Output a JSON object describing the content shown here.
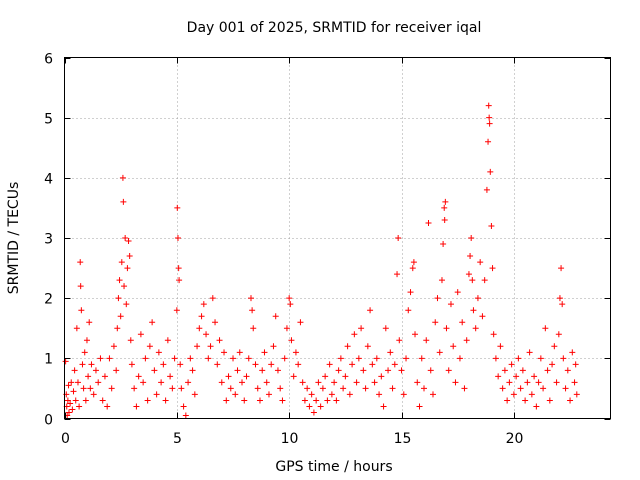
{
  "chart_data": {
    "type": "scatter",
    "title": "Day 001 of 2025, SRMTID for receiver iqal",
    "xlabel": "GPS time / hours",
    "ylabel": "SRMTID / TECUs",
    "xlim": [
      0,
      24.3
    ],
    "ylim": [
      0,
      6
    ],
    "xticks": [
      0,
      5,
      10,
      15,
      20
    ],
    "yticks": [
      0,
      1,
      2,
      3,
      4,
      5,
      6
    ],
    "grid": true,
    "marker": "plus",
    "colors": {
      "marker": "#ff0000",
      "grid": "#a0a0a0",
      "axis": "#000000"
    },
    "series": [
      {
        "name": "SRMTID",
        "points": [
          [
            0.05,
            0.95
          ],
          [
            0.08,
            0.4
          ],
          [
            0.1,
            0.2
          ],
          [
            0.12,
            0.05
          ],
          [
            0.15,
            0.3
          ],
          [
            0.18,
            0.55
          ],
          [
            0.2,
            0.1
          ],
          [
            0.25,
            0.25
          ],
          [
            0.3,
            0.6
          ],
          [
            0.35,
            0.15
          ],
          [
            0.4,
            0.45
          ],
          [
            0.45,
            0.8
          ],
          [
            0.5,
            0.3
          ],
          [
            0.55,
            1.5
          ],
          [
            0.6,
            0.6
          ],
          [
            0.65,
            0.2
          ],
          [
            0.7,
            2.6
          ],
          [
            0.72,
            2.2
          ],
          [
            0.75,
            1.8
          ],
          [
            0.8,
            0.9
          ],
          [
            0.85,
            0.5
          ],
          [
            0.9,
            1.1
          ],
          [
            0.95,
            0.3
          ],
          [
            1.0,
            1.3
          ],
          [
            1.05,
            0.7
          ],
          [
            1.1,
            1.6
          ],
          [
            1.15,
            0.5
          ],
          [
            1.2,
            0.9
          ],
          [
            1.3,
            0.4
          ],
          [
            1.4,
            0.8
          ],
          [
            1.5,
            0.6
          ],
          [
            1.6,
            1.0
          ],
          [
            1.7,
            0.3
          ],
          [
            1.8,
            0.7
          ],
          [
            1.9,
            0.2
          ],
          [
            2.0,
            1.0
          ],
          [
            2.1,
            0.5
          ],
          [
            2.2,
            1.2
          ],
          [
            2.3,
            0.8
          ],
          [
            2.35,
            1.5
          ],
          [
            2.4,
            2.0
          ],
          [
            2.45,
            2.3
          ],
          [
            2.5,
            1.7
          ],
          [
            2.55,
            2.6
          ],
          [
            2.6,
            4.0
          ],
          [
            2.62,
            3.6
          ],
          [
            2.65,
            2.2
          ],
          [
            2.7,
            3.0
          ],
          [
            2.75,
            1.9
          ],
          [
            2.8,
            2.5
          ],
          [
            2.85,
            2.95
          ],
          [
            2.9,
            2.7
          ],
          [
            2.95,
            1.3
          ],
          [
            3.0,
            0.9
          ],
          [
            3.1,
            0.5
          ],
          [
            3.2,
            0.2
          ],
          [
            3.3,
            0.7
          ],
          [
            3.4,
            1.4
          ],
          [
            3.5,
            0.6
          ],
          [
            3.6,
            1.0
          ],
          [
            3.7,
            0.3
          ],
          [
            3.8,
            1.2
          ],
          [
            3.9,
            1.6
          ],
          [
            4.0,
            0.8
          ],
          [
            4.1,
            0.4
          ],
          [
            4.2,
            1.1
          ],
          [
            4.3,
            0.6
          ],
          [
            4.4,
            0.9
          ],
          [
            4.5,
            0.3
          ],
          [
            4.6,
            1.3
          ],
          [
            4.7,
            0.7
          ],
          [
            4.8,
            0.5
          ],
          [
            4.9,
            1.0
          ],
          [
            5.0,
            1.8
          ],
          [
            5.02,
            3.5
          ],
          [
            5.05,
            3.0
          ],
          [
            5.08,
            2.5
          ],
          [
            5.1,
            2.3
          ],
          [
            5.15,
            0.9
          ],
          [
            5.2,
            0.5
          ],
          [
            5.3,
            0.2
          ],
          [
            5.4,
            0.05
          ],
          [
            5.5,
            0.6
          ],
          [
            5.6,
            1.0
          ],
          [
            5.7,
            0.8
          ],
          [
            5.8,
            0.4
          ],
          [
            5.9,
            1.2
          ],
          [
            6.0,
            1.5
          ],
          [
            6.1,
            1.7
          ],
          [
            6.2,
            1.9
          ],
          [
            6.3,
            1.4
          ],
          [
            6.4,
            1.0
          ],
          [
            6.5,
            1.2
          ],
          [
            6.6,
            2.0
          ],
          [
            6.7,
            1.6
          ],
          [
            6.8,
            0.9
          ],
          [
            6.9,
            1.3
          ],
          [
            7.0,
            0.6
          ],
          [
            7.1,
            1.1
          ],
          [
            7.2,
            0.3
          ],
          [
            7.3,
            0.7
          ],
          [
            7.4,
            0.5
          ],
          [
            7.5,
            1.0
          ],
          [
            7.6,
            0.4
          ],
          [
            7.7,
            0.8
          ],
          [
            7.8,
            1.1
          ],
          [
            7.9,
            0.6
          ],
          [
            8.0,
            0.3
          ],
          [
            8.1,
            0.7
          ],
          [
            8.2,
            1.0
          ],
          [
            8.3,
            2.0
          ],
          [
            8.35,
            1.8
          ],
          [
            8.4,
            1.5
          ],
          [
            8.5,
            0.9
          ],
          [
            8.6,
            0.5
          ],
          [
            8.7,
            0.3
          ],
          [
            8.8,
            0.8
          ],
          [
            8.9,
            1.1
          ],
          [
            9.0,
            0.6
          ],
          [
            9.1,
            0.4
          ],
          [
            9.2,
            0.9
          ],
          [
            9.3,
            1.2
          ],
          [
            9.4,
            1.7
          ],
          [
            9.5,
            0.8
          ],
          [
            9.6,
            0.5
          ],
          [
            9.7,
            0.3
          ],
          [
            9.8,
            1.0
          ],
          [
            9.9,
            1.5
          ],
          [
            10.0,
            2.0
          ],
          [
            10.05,
            1.9
          ],
          [
            10.1,
            1.3
          ],
          [
            10.2,
            0.7
          ],
          [
            10.3,
            1.1
          ],
          [
            10.4,
            0.9
          ],
          [
            10.5,
            1.6
          ],
          [
            10.6,
            0.6
          ],
          [
            10.7,
            0.3
          ],
          [
            10.8,
            0.5
          ],
          [
            10.9,
            0.2
          ],
          [
            11.0,
            0.4
          ],
          [
            11.1,
            0.1
          ],
          [
            11.2,
            0.3
          ],
          [
            11.3,
            0.6
          ],
          [
            11.4,
            0.2
          ],
          [
            11.5,
            0.5
          ],
          [
            11.6,
            0.7
          ],
          [
            11.7,
            0.3
          ],
          [
            11.8,
            0.9
          ],
          [
            11.9,
            0.4
          ],
          [
            12.0,
            0.6
          ],
          [
            12.1,
            0.3
          ],
          [
            12.2,
            0.8
          ],
          [
            12.3,
            1.0
          ],
          [
            12.4,
            0.5
          ],
          [
            12.5,
            0.7
          ],
          [
            12.6,
            1.2
          ],
          [
            12.7,
            0.4
          ],
          [
            12.8,
            0.9
          ],
          [
            12.9,
            1.4
          ],
          [
            13.0,
            0.6
          ],
          [
            13.1,
            1.0
          ],
          [
            13.2,
            1.5
          ],
          [
            13.3,
            0.8
          ],
          [
            13.4,
            0.5
          ],
          [
            13.5,
            1.2
          ],
          [
            13.6,
            1.8
          ],
          [
            13.7,
            0.9
          ],
          [
            13.8,
            0.6
          ],
          [
            13.9,
            1.0
          ],
          [
            14.0,
            0.4
          ],
          [
            14.1,
            0.7
          ],
          [
            14.2,
            0.2
          ],
          [
            14.3,
            1.5
          ],
          [
            14.4,
            0.8
          ],
          [
            14.5,
            1.1
          ],
          [
            14.6,
            0.5
          ],
          [
            14.7,
            0.9
          ],
          [
            14.8,
            2.4
          ],
          [
            14.85,
            3.0
          ],
          [
            14.9,
            1.3
          ],
          [
            15.0,
            0.8
          ],
          [
            15.1,
            0.4
          ],
          [
            15.2,
            1.0
          ],
          [
            15.3,
            1.8
          ],
          [
            15.4,
            2.1
          ],
          [
            15.5,
            2.5
          ],
          [
            15.55,
            2.6
          ],
          [
            15.6,
            1.4
          ],
          [
            15.7,
            0.6
          ],
          [
            15.8,
            0.2
          ],
          [
            15.9,
            1.0
          ],
          [
            16.0,
            0.5
          ],
          [
            16.1,
            1.3
          ],
          [
            16.2,
            3.25
          ],
          [
            16.3,
            0.8
          ],
          [
            16.4,
            0.4
          ],
          [
            16.5,
            1.6
          ],
          [
            16.6,
            2.0
          ],
          [
            16.7,
            1.1
          ],
          [
            16.8,
            2.3
          ],
          [
            16.85,
            2.9
          ],
          [
            16.9,
            3.5
          ],
          [
            16.92,
            3.3
          ],
          [
            16.95,
            3.6
          ],
          [
            17.0,
            1.5
          ],
          [
            17.1,
            0.8
          ],
          [
            17.2,
            1.9
          ],
          [
            17.3,
            1.2
          ],
          [
            17.4,
            0.6
          ],
          [
            17.5,
            2.1
          ],
          [
            17.6,
            1.0
          ],
          [
            17.7,
            1.6
          ],
          [
            17.8,
            0.5
          ],
          [
            17.9,
            1.3
          ],
          [
            18.0,
            2.4
          ],
          [
            18.05,
            2.7
          ],
          [
            18.1,
            3.0
          ],
          [
            18.15,
            2.3
          ],
          [
            18.2,
            1.8
          ],
          [
            18.3,
            1.5
          ],
          [
            18.4,
            2.0
          ],
          [
            18.5,
            2.6
          ],
          [
            18.6,
            1.7
          ],
          [
            18.7,
            2.3
          ],
          [
            18.8,
            3.8
          ],
          [
            18.85,
            4.6
          ],
          [
            18.88,
            5.2
          ],
          [
            18.9,
            5.0
          ],
          [
            18.92,
            4.9
          ],
          [
            18.95,
            4.1
          ],
          [
            19.0,
            3.2
          ],
          [
            19.05,
            2.5
          ],
          [
            19.1,
            1.4
          ],
          [
            19.2,
            1.0
          ],
          [
            19.3,
            0.7
          ],
          [
            19.4,
            1.2
          ],
          [
            19.5,
            0.5
          ],
          [
            19.6,
            0.8
          ],
          [
            19.7,
            0.3
          ],
          [
            19.8,
            0.6
          ],
          [
            19.9,
            0.9
          ],
          [
            20.0,
            0.4
          ],
          [
            20.1,
            0.7
          ],
          [
            20.2,
            1.0
          ],
          [
            20.3,
            0.5
          ],
          [
            20.4,
            0.8
          ],
          [
            20.5,
            0.3
          ],
          [
            20.6,
            0.6
          ],
          [
            20.7,
            1.1
          ],
          [
            20.8,
            0.4
          ],
          [
            20.9,
            0.7
          ],
          [
            21.0,
            0.2
          ],
          [
            21.1,
            0.6
          ],
          [
            21.2,
            1.0
          ],
          [
            21.3,
            0.5
          ],
          [
            21.4,
            1.5
          ],
          [
            21.5,
            0.8
          ],
          [
            21.6,
            0.3
          ],
          [
            21.7,
            0.9
          ],
          [
            21.8,
            1.2
          ],
          [
            21.9,
            0.6
          ],
          [
            22.0,
            1.4
          ],
          [
            22.05,
            2.0
          ],
          [
            22.1,
            2.5
          ],
          [
            22.15,
            1.9
          ],
          [
            22.2,
            1.0
          ],
          [
            22.3,
            0.5
          ],
          [
            22.4,
            0.8
          ],
          [
            22.5,
            0.3
          ],
          [
            22.6,
            1.1
          ],
          [
            22.7,
            0.6
          ],
          [
            22.75,
            0.9
          ],
          [
            22.8,
            0.4
          ]
        ]
      }
    ]
  }
}
